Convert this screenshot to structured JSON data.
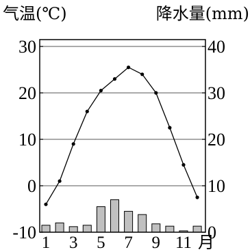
{
  "chart_data": {
    "type": "climate",
    "left_title": "气温(℃)",
    "right_title": "降水量(mm)",
    "x_unit": "月",
    "months": [
      1,
      2,
      3,
      4,
      5,
      6,
      7,
      8,
      9,
      10,
      11,
      12
    ],
    "x_tick_labels": [
      "1",
      "3",
      "5",
      "7",
      "9",
      "11"
    ],
    "temperature": {
      "type": "line",
      "values": [
        -4,
        1,
        9,
        16,
        20.5,
        23,
        25.5,
        24,
        20,
        12.5,
        4.5,
        -2.5
      ],
      "ylim": [
        -10,
        33
      ],
      "ticks": [
        "-10",
        "0",
        "10",
        "20",
        "30"
      ],
      "color": "#000000"
    },
    "precipitation": {
      "type": "bar",
      "values": [
        1.5,
        2,
        1.2,
        1.5,
        5.5,
        7,
        4.5,
        3.8,
        1.8,
        1.3,
        0.3,
        1.3
      ],
      "ylim": [
        0,
        40
      ],
      "ticks": [
        "0",
        "10",
        "20",
        "30",
        "40"
      ],
      "bar_color": "#c0c0c0",
      "bar_stroke": "#000000"
    },
    "grid": true
  }
}
